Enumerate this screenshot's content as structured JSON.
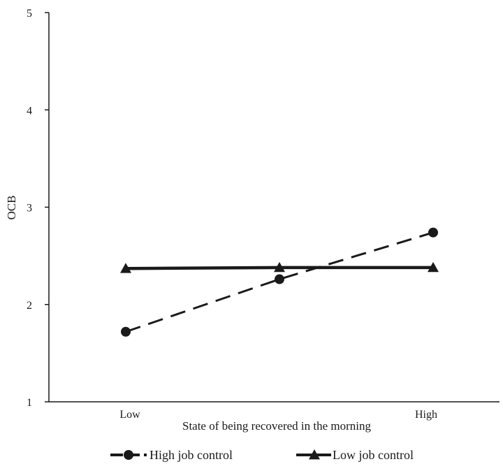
{
  "chart_data": {
    "type": "line",
    "title": "",
    "xlabel": "State of being recovered in the morning",
    "ylabel": "OCB",
    "categories": [
      "Low",
      "",
      "High"
    ],
    "x_tick_labels": [
      "Low",
      "High"
    ],
    "ylim": [
      1,
      5
    ],
    "yticks": [
      "1",
      "2",
      "3",
      "4",
      "5"
    ],
    "grid": false,
    "legend_position": "bottom",
    "series": [
      {
        "name": "High job control",
        "values": [
          1.72,
          2.26,
          2.74
        ],
        "marker": "circle",
        "line_style": "dashed",
        "color": "#1a1a1a"
      },
      {
        "name": "Low job control",
        "values": [
          2.37,
          2.38,
          2.38
        ],
        "marker": "triangle",
        "line_style": "solid",
        "color": "#1a1a1a"
      }
    ]
  }
}
